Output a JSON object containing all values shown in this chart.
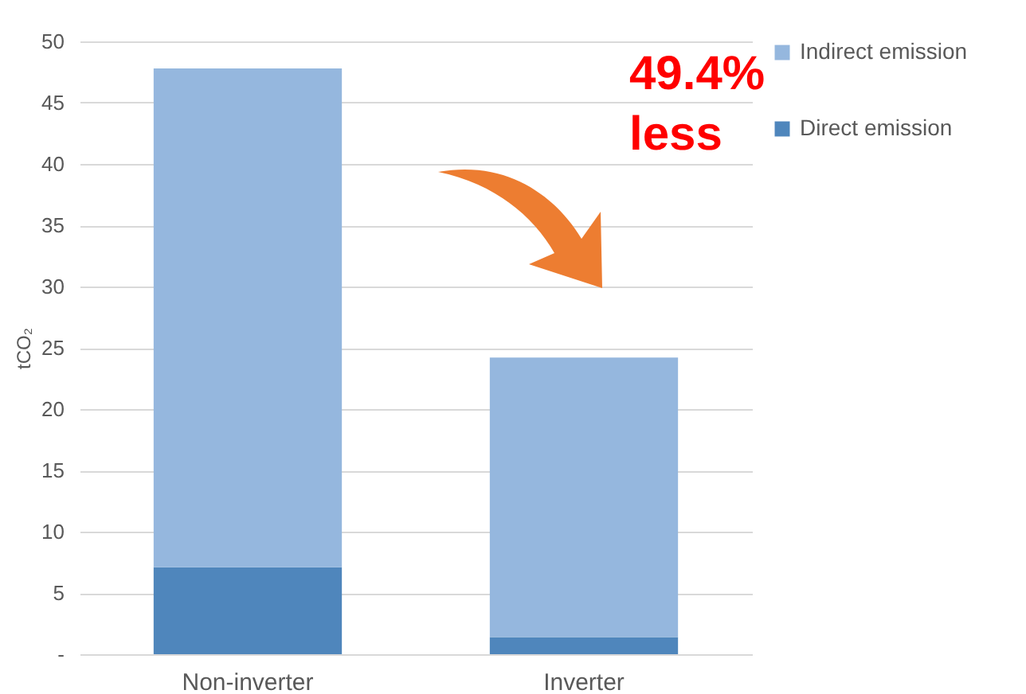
{
  "chart_data": {
    "type": "bar",
    "stacked": true,
    "ylabel": "tCO₂",
    "categories": [
      "Non-inverter",
      "Inverter"
    ],
    "series": [
      {
        "name": "Direct emission",
        "color": "#4f86bc",
        "values": [
          7.1,
          1.4
        ]
      },
      {
        "name": "Indirect emission",
        "color": "#95b7de",
        "values": [
          40.7,
          22.8
        ]
      }
    ],
    "ylim": [
      0,
      50
    ],
    "yticks": [
      {
        "value": 0,
        "label": "-"
      },
      5,
      10,
      15,
      20,
      25,
      30,
      35,
      40,
      45,
      50
    ],
    "grid": "y",
    "legend": "right",
    "annotations": [
      "49.4% less"
    ]
  }
}
